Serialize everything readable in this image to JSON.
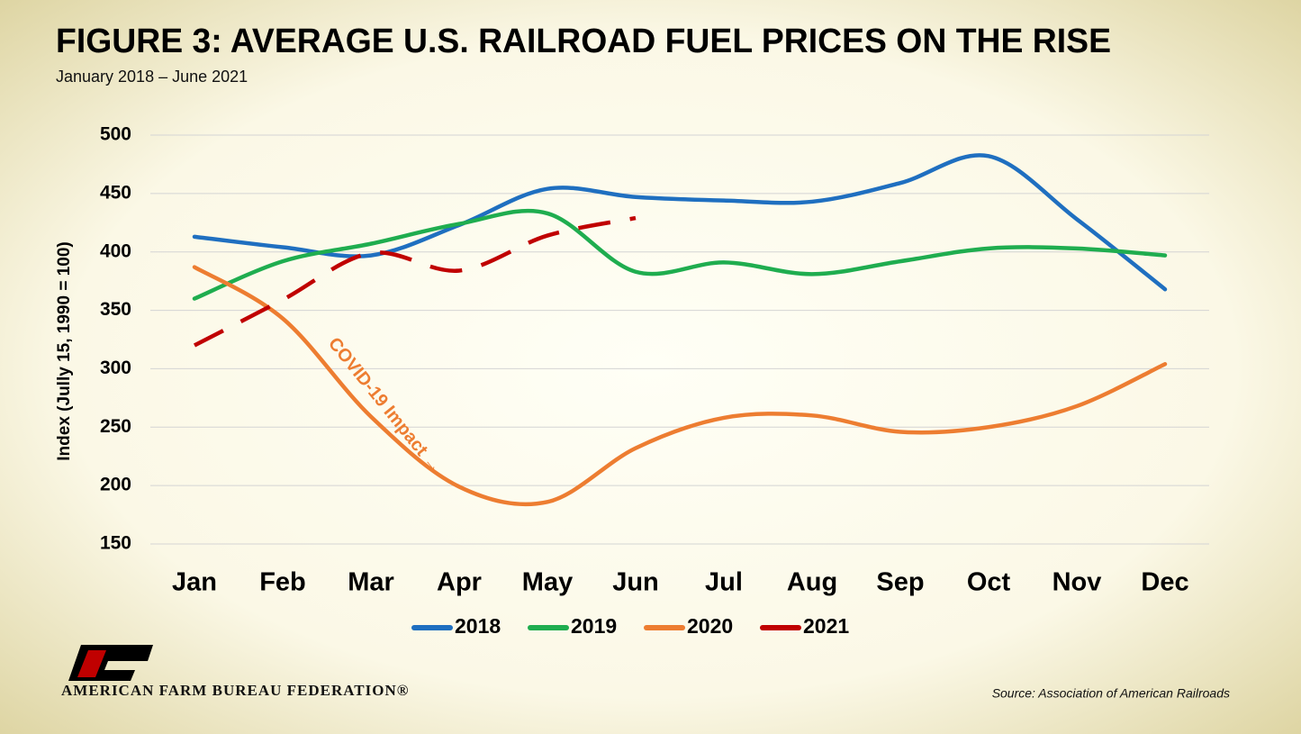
{
  "chart_data": {
    "type": "line",
    "title": "FIGURE 3: AVERAGE U.S. RAILROAD FUEL PRICES ON THE RISE",
    "subtitle": "January 2018 – June 2021",
    "y_label": "Index (Jully 15, 1990 = 100)",
    "categories": [
      "Jan",
      "Feb",
      "Mar",
      "Apr",
      "May",
      "Jun",
      "Jul",
      "Aug",
      "Sep",
      "Oct",
      "Nov",
      "Dec"
    ],
    "series": [
      {
        "name": "2018",
        "color": "#1f6fc0",
        "values": [
          413,
          404,
          397,
          423,
          454,
          447,
          444,
          443,
          459,
          482,
          428,
          368
        ]
      },
      {
        "name": "2019",
        "color": "#1fad4f",
        "values": [
          360,
          392,
          407,
          424,
          433,
          383,
          391,
          381,
          392,
          403,
          403,
          397
        ]
      },
      {
        "name": "2020",
        "color": "#ed7d31",
        "values": [
          387,
          343,
          259,
          199,
          186,
          232,
          258,
          260,
          246,
          250,
          268,
          304
        ]
      },
      {
        "name": "2021",
        "color": "#c00000",
        "dashed": true,
        "values": [
          320,
          359,
          399,
          384,
          414,
          429,
          null,
          null,
          null,
          null,
          null,
          null
        ]
      }
    ],
    "ylim": [
      150,
      500
    ],
    "yticks": [
      150,
      200,
      250,
      300,
      350,
      400,
      450,
      500
    ],
    "grid": true,
    "legend": "bottom",
    "annotation": "COVID-19 Impact →",
    "logo_text": "AMERICAN FARM BUREAU FEDERATION®",
    "source": "Source: Association of American Railroads"
  }
}
